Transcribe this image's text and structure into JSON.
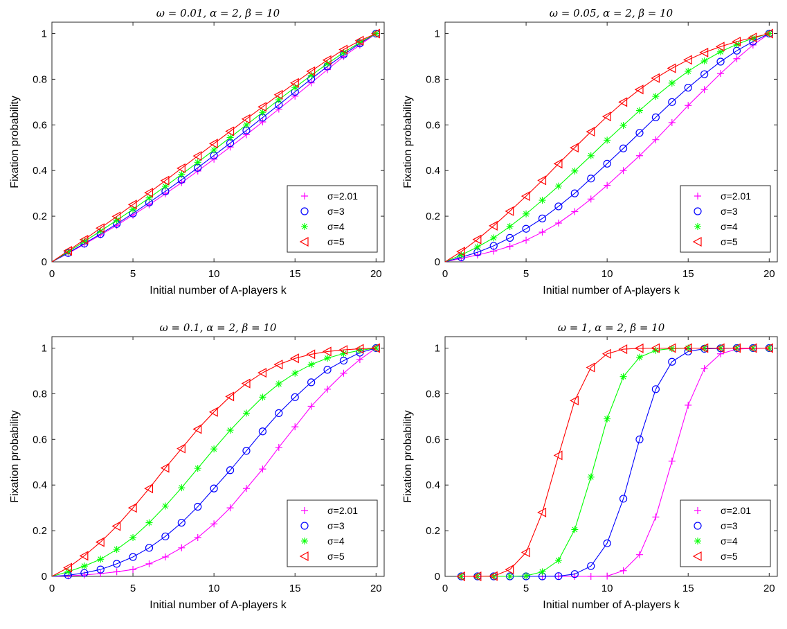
{
  "chart_data": [
    {
      "type": "line",
      "title": "ω = 0.01, α = 2, β = 10",
      "xlabel": "Initial number of A-players k",
      "ylabel": "Fixation probability",
      "xlim": [
        0,
        20.5
      ],
      "ylim": [
        0,
        1.05
      ],
      "xticks": [
        "0",
        "5",
        "10",
        "15",
        "20"
      ],
      "yticks": [
        "0",
        "0.2",
        "0.4",
        "0.6",
        "0.8",
        "1"
      ],
      "legend_position": "bottom-right",
      "x": [
        0,
        1,
        2,
        3,
        4,
        5,
        6,
        7,
        8,
        9,
        10,
        11,
        12,
        13,
        14,
        15,
        16,
        17,
        18,
        19,
        20
      ],
      "series": [
        {
          "name": "σ=2.01",
          "color": "#ff00ff",
          "marker": "plus",
          "values": [
            0,
            0.037,
            0.077,
            0.118,
            0.16,
            0.205,
            0.25,
            0.298,
            0.347,
            0.398,
            0.45,
            0.503,
            0.557,
            0.613,
            0.669,
            0.726,
            0.784,
            0.842,
            0.9,
            0.95,
            1
          ]
        },
        {
          "name": "σ=3",
          "color": "#0000ff",
          "marker": "circle",
          "values": [
            0,
            0.039,
            0.08,
            0.122,
            0.166,
            0.212,
            0.26,
            0.309,
            0.36,
            0.412,
            0.466,
            0.52,
            0.576,
            0.632,
            0.688,
            0.745,
            0.801,
            0.856,
            0.908,
            0.957,
            1
          ]
        },
        {
          "name": "σ=4",
          "color": "#00ff00",
          "marker": "asterisk",
          "values": [
            0,
            0.044,
            0.089,
            0.135,
            0.182,
            0.23,
            0.28,
            0.331,
            0.383,
            0.436,
            0.49,
            0.545,
            0.6,
            0.655,
            0.71,
            0.764,
            0.817,
            0.868,
            0.917,
            0.961,
            1
          ]
        },
        {
          "name": "σ=5",
          "color": "#ff0000",
          "marker": "triangle-left",
          "values": [
            0,
            0.048,
            0.097,
            0.148,
            0.199,
            0.251,
            0.303,
            0.356,
            0.41,
            0.464,
            0.518,
            0.572,
            0.626,
            0.679,
            0.732,
            0.784,
            0.835,
            0.884,
            0.93,
            0.969,
            1
          ]
        }
      ]
    },
    {
      "type": "line",
      "title": "ω = 0.05, α = 2, β = 10",
      "xlabel": "Initial number of A-players k",
      "ylabel": "Fixation probability",
      "xlim": [
        0,
        20.5
      ],
      "ylim": [
        0,
        1.05
      ],
      "xticks": [
        "0",
        "5",
        "10",
        "15",
        "20"
      ],
      "yticks": [
        "0",
        "0.2",
        "0.4",
        "0.6",
        "0.8",
        "1"
      ],
      "legend_position": "bottom-right",
      "x": [
        0,
        1,
        2,
        3,
        4,
        5,
        6,
        7,
        8,
        9,
        10,
        11,
        12,
        13,
        14,
        15,
        16,
        17,
        18,
        19,
        20
      ],
      "series": [
        {
          "name": "σ=2.01",
          "color": "#ff00ff",
          "marker": "plus",
          "values": [
            0,
            0.015,
            0.03,
            0.047,
            0.068,
            0.095,
            0.13,
            0.17,
            0.22,
            0.275,
            0.335,
            0.4,
            0.465,
            0.535,
            0.61,
            0.685,
            0.755,
            0.825,
            0.89,
            0.95,
            1
          ]
        },
        {
          "name": "σ=3",
          "color": "#0000ff",
          "marker": "circle",
          "values": [
            0,
            0.02,
            0.042,
            0.07,
            0.105,
            0.145,
            0.19,
            0.243,
            0.3,
            0.365,
            0.43,
            0.497,
            0.565,
            0.633,
            0.7,
            0.763,
            0.822,
            0.877,
            0.925,
            0.965,
            1
          ]
        },
        {
          "name": "σ=4",
          "color": "#00ff00",
          "marker": "asterisk",
          "values": [
            0,
            0.03,
            0.065,
            0.105,
            0.155,
            0.21,
            0.27,
            0.332,
            0.398,
            0.465,
            0.533,
            0.598,
            0.663,
            0.725,
            0.783,
            0.835,
            0.88,
            0.92,
            0.953,
            0.98,
            1
          ]
        },
        {
          "name": "σ=5",
          "color": "#ff0000",
          "marker": "triangle-left",
          "values": [
            0,
            0.045,
            0.098,
            0.158,
            0.222,
            0.288,
            0.357,
            0.43,
            0.5,
            0.57,
            0.637,
            0.7,
            0.755,
            0.805,
            0.848,
            0.885,
            0.917,
            0.943,
            0.965,
            0.983,
            1
          ]
        }
      ]
    },
    {
      "type": "line",
      "title": "ω = 0.1, α = 2, β = 10",
      "xlabel": "Initial number of A-players k",
      "ylabel": "Fixation probability",
      "xlim": [
        0,
        20.5
      ],
      "ylim": [
        0,
        1.05
      ],
      "xticks": [
        "0",
        "5",
        "10",
        "15",
        "20"
      ],
      "yticks": [
        "0",
        "0.2",
        "0.4",
        "0.6",
        "0.8",
        "1"
      ],
      "legend_position": "bottom-right",
      "x": [
        0,
        1,
        2,
        3,
        4,
        5,
        6,
        7,
        8,
        9,
        10,
        11,
        12,
        13,
        14,
        15,
        16,
        17,
        18,
        19,
        20
      ],
      "series": [
        {
          "name": "σ=2.01",
          "color": "#ff00ff",
          "marker": "plus",
          "values": [
            0,
            0.002,
            0.006,
            0.012,
            0.02,
            0.03,
            0.055,
            0.085,
            0.125,
            0.17,
            0.23,
            0.3,
            0.385,
            0.47,
            0.565,
            0.655,
            0.745,
            0.82,
            0.89,
            0.95,
            1
          ]
        },
        {
          "name": "σ=3",
          "color": "#0000ff",
          "marker": "circle",
          "values": [
            0,
            0.005,
            0.015,
            0.03,
            0.055,
            0.085,
            0.125,
            0.175,
            0.235,
            0.305,
            0.385,
            0.465,
            0.55,
            0.635,
            0.715,
            0.785,
            0.85,
            0.905,
            0.945,
            0.98,
            1
          ]
        },
        {
          "name": "σ=4",
          "color": "#00ff00",
          "marker": "asterisk",
          "values": [
            0,
            0.02,
            0.045,
            0.075,
            0.118,
            0.17,
            0.235,
            0.308,
            0.388,
            0.473,
            0.558,
            0.64,
            0.715,
            0.785,
            0.843,
            0.89,
            0.928,
            0.956,
            0.976,
            0.99,
            1
          ]
        },
        {
          "name": "σ=5",
          "color": "#ff0000",
          "marker": "triangle-left",
          "values": [
            0,
            0.038,
            0.09,
            0.15,
            0.22,
            0.3,
            0.385,
            0.475,
            0.56,
            0.645,
            0.72,
            0.788,
            0.845,
            0.892,
            0.928,
            0.955,
            0.973,
            0.985,
            0.992,
            0.997,
            1
          ]
        }
      ]
    },
    {
      "type": "line",
      "title": "ω = 1, α = 2, β = 10",
      "xlabel": "Initial number of A-players k",
      "ylabel": "Fixation probability",
      "xlim": [
        0,
        20.5
      ],
      "ylim": [
        0,
        1.05
      ],
      "xticks": [
        "0",
        "5",
        "10",
        "15",
        "20"
      ],
      "yticks": [
        "0",
        "0.2",
        "0.4",
        "0.6",
        "0.8",
        "1"
      ],
      "legend_position": "bottom-right",
      "x": [
        1,
        2,
        3,
        4,
        5,
        6,
        7,
        8,
        9,
        10,
        11,
        12,
        13,
        14,
        15,
        16,
        17,
        18,
        19,
        20
      ],
      "series": [
        {
          "name": "σ=2.01",
          "color": "#ff00ff",
          "marker": "plus",
          "values": [
            0,
            0,
            0,
            0,
            0,
            0,
            0,
            0,
            0,
            0.001,
            0.025,
            0.095,
            0.26,
            0.505,
            0.75,
            0.91,
            0.975,
            0.995,
            0.999,
            1
          ]
        },
        {
          "name": "σ=3",
          "color": "#0000ff",
          "marker": "circle",
          "values": [
            0,
            0,
            0,
            0,
            0,
            0,
            0.001,
            0.01,
            0.045,
            0.145,
            0.34,
            0.6,
            0.82,
            0.94,
            0.985,
            0.997,
            0.999,
            1,
            1,
            1
          ]
        },
        {
          "name": "σ=4",
          "color": "#00ff00",
          "marker": "asterisk",
          "values": [
            0,
            0,
            0,
            0,
            0.002,
            0.02,
            0.07,
            0.205,
            0.435,
            0.69,
            0.875,
            0.96,
            0.99,
            0.998,
            1,
            1,
            1,
            1,
            1,
            1
          ]
        },
        {
          "name": "σ=5",
          "color": "#ff0000",
          "marker": "triangle-left",
          "values": [
            0,
            0,
            0.001,
            0.03,
            0.105,
            0.28,
            0.53,
            0.77,
            0.915,
            0.975,
            0.995,
            0.999,
            1,
            1,
            1,
            1,
            1,
            1,
            1,
            1
          ]
        }
      ]
    }
  ]
}
